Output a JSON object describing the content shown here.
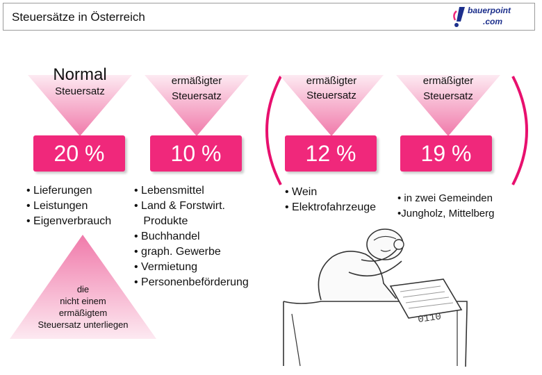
{
  "header": {
    "title": "Steuersätze in Österreich",
    "logo_line1": "bauerpoint",
    "logo_line2": ".com"
  },
  "colors": {
    "accent": "#f0287b",
    "triangle_light": "#fce1ee",
    "logo_blue": "#1c2f8c"
  },
  "columns": [
    {
      "heading": "Normal",
      "sub": "Steuersatz",
      "rate": "20 %",
      "items": [
        "• Lieferungen",
        "• Leistungen",
        "• Eigenverbrauch"
      ]
    },
    {
      "heading": "ermäßigter",
      "sub": "Steuersatz",
      "rate": "10 %",
      "items": [
        "• Lebensmittel",
        "• Land & Forstwirt.",
        "   Produkte",
        "• Buchhandel",
        "• graph. Gewerbe",
        "• Vermietung",
        "• Personenbeförderung"
      ]
    },
    {
      "heading": "ermäßigter",
      "sub": "Steuersatz",
      "rate": "12 %",
      "items": [
        "• Wein",
        "• Elektrofahrzeuge"
      ]
    },
    {
      "heading": "ermäßigter",
      "sub": "Steuersatz",
      "rate": "19 %",
      "items": [
        "• in zwei Gemeinden",
        "•Jungholz, Mittelberg"
      ]
    }
  ],
  "pyramid_note": [
    "die",
    "nicht einem",
    "ermäßigtem",
    "Steuersatz unterliegen"
  ],
  "illustration": {
    "book_text": "0110"
  }
}
